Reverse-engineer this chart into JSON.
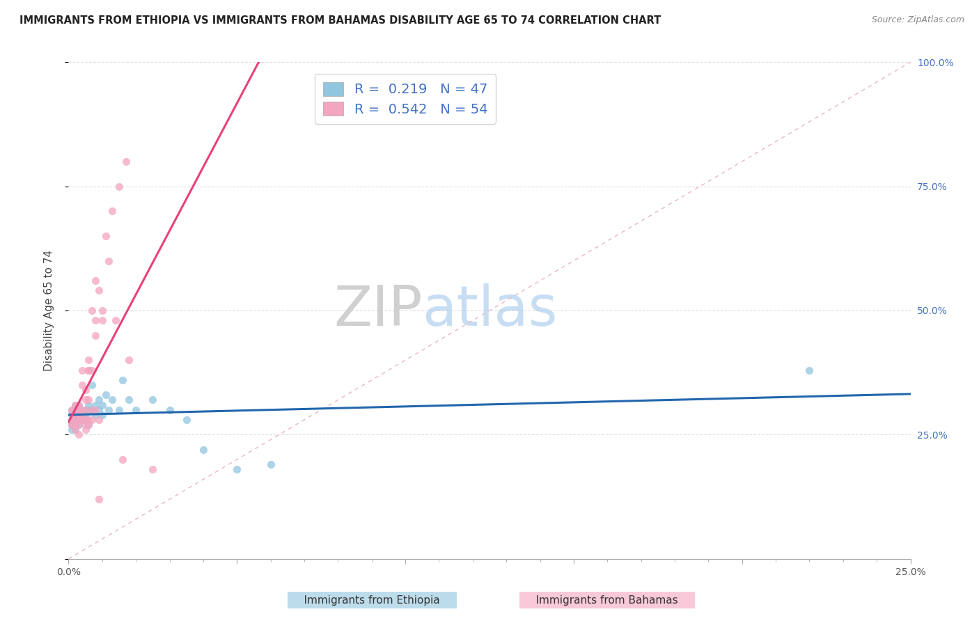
{
  "title": "IMMIGRANTS FROM ETHIOPIA VS IMMIGRANTS FROM BAHAMAS DISABILITY AGE 65 TO 74 CORRELATION CHART",
  "source": "Source: ZipAtlas.com",
  "ylabel": "Disability Age 65 to 74",
  "xlim": [
    0.0,
    0.25
  ],
  "ylim": [
    0.0,
    1.0
  ],
  "ethiopia_color": "#92c5de",
  "bahamas_color": "#f4a5c0",
  "ethiopia_line_color": "#2166ac",
  "bahamas_line_color": "#e8417a",
  "diagonal_color": "#f4a5c0",
  "ethiopia_R": 0.219,
  "ethiopia_N": 47,
  "bahamas_R": 0.542,
  "bahamas_N": 54,
  "watermark_zip": "ZIP",
  "watermark_atlas": "atlas",
  "background_color": "#ffffff",
  "grid_color": "#dddddd",
  "legend_R_color": "#4472c4",
  "legend_N_color": "#4472c4",
  "right_axis_color": "#4472c4",
  "ethiopia_scatter_x": [
    0.001,
    0.001,
    0.001,
    0.001,
    0.001,
    0.002,
    0.002,
    0.002,
    0.002,
    0.002,
    0.002,
    0.003,
    0.003,
    0.003,
    0.003,
    0.003,
    0.004,
    0.004,
    0.004,
    0.005,
    0.005,
    0.005,
    0.006,
    0.006,
    0.006,
    0.007,
    0.007,
    0.008,
    0.008,
    0.009,
    0.009,
    0.01,
    0.01,
    0.011,
    0.012,
    0.013,
    0.015,
    0.016,
    0.018,
    0.02,
    0.025,
    0.03,
    0.035,
    0.04,
    0.05,
    0.06,
    0.22
  ],
  "ethiopia_scatter_y": [
    0.27,
    0.28,
    0.29,
    0.3,
    0.26,
    0.28,
    0.3,
    0.29,
    0.27,
    0.31,
    0.26,
    0.3,
    0.28,
    0.29,
    0.27,
    0.31,
    0.3,
    0.28,
    0.29,
    0.3,
    0.29,
    0.28,
    0.31,
    0.3,
    0.27,
    0.35,
    0.3,
    0.31,
    0.29,
    0.3,
    0.32,
    0.29,
    0.31,
    0.33,
    0.3,
    0.32,
    0.3,
    0.36,
    0.32,
    0.3,
    0.32,
    0.3,
    0.28,
    0.22,
    0.18,
    0.19,
    0.38
  ],
  "bahamas_scatter_x": [
    0.001,
    0.001,
    0.001,
    0.002,
    0.002,
    0.002,
    0.002,
    0.002,
    0.002,
    0.003,
    0.003,
    0.003,
    0.003,
    0.003,
    0.003,
    0.004,
    0.004,
    0.004,
    0.004,
    0.004,
    0.005,
    0.005,
    0.005,
    0.005,
    0.005,
    0.005,
    0.006,
    0.006,
    0.006,
    0.006,
    0.006,
    0.006,
    0.007,
    0.007,
    0.007,
    0.007,
    0.008,
    0.008,
    0.008,
    0.008,
    0.009,
    0.009,
    0.009,
    0.01,
    0.01,
    0.011,
    0.012,
    0.013,
    0.014,
    0.015,
    0.016,
    0.017,
    0.018,
    0.025
  ],
  "bahamas_scatter_y": [
    0.27,
    0.28,
    0.3,
    0.28,
    0.29,
    0.3,
    0.27,
    0.26,
    0.31,
    0.28,
    0.3,
    0.27,
    0.29,
    0.31,
    0.25,
    0.29,
    0.3,
    0.28,
    0.35,
    0.38,
    0.3,
    0.28,
    0.34,
    0.27,
    0.32,
    0.26,
    0.32,
    0.38,
    0.28,
    0.4,
    0.27,
    0.38,
    0.38,
    0.28,
    0.3,
    0.5,
    0.45,
    0.3,
    0.48,
    0.56,
    0.28,
    0.54,
    0.12,
    0.5,
    0.48,
    0.65,
    0.6,
    0.7,
    0.48,
    0.75,
    0.2,
    0.8,
    0.4,
    0.18
  ]
}
